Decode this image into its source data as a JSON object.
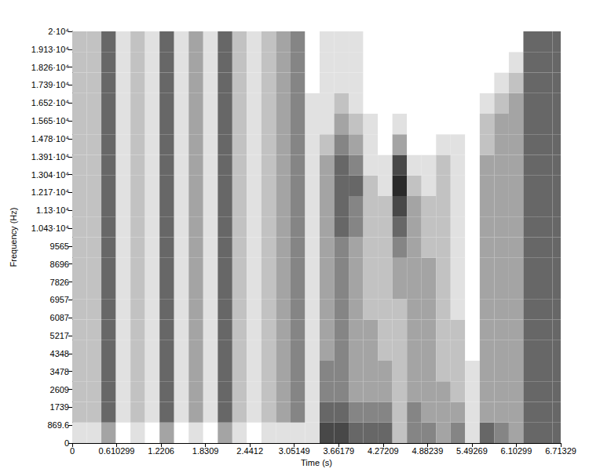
{
  "chart_data": {
    "type": "heatmap",
    "x_label": "Time (s)",
    "y_label": "Frequency (Hz)",
    "xlim": [
      0,
      6.71329
    ],
    "ylim": [
      0,
      20000
    ],
    "xticks": [
      0,
      0.610299,
      1.2206,
      1.8309,
      2.4412,
      3.05149,
      3.66179,
      4.27209,
      4.88239,
      5.49269,
      6.10299,
      6.71329
    ],
    "yticks": [
      0,
      869.6,
      1739,
      2609,
      3478,
      4348,
      5217,
      6087,
      6957,
      7826,
      8696,
      9565,
      {
        "value": 10435,
        "label": "1.043·10⁴"
      },
      {
        "value": 11304,
        "label": "1.13·10⁴"
      },
      {
        "value": 12174,
        "label": "1.217·10⁴"
      },
      {
        "value": 13043,
        "label": "1.304·10⁴"
      },
      {
        "value": 13913,
        "label": "1.391·10⁴"
      },
      {
        "value": 14783,
        "label": "1.478·10⁴"
      },
      {
        "value": 15652,
        "label": "1.565·10⁴"
      },
      {
        "value": 16522,
        "label": "1.652·10⁴"
      },
      {
        "value": 17391,
        "label": "1.739·10⁴"
      },
      {
        "value": 18261,
        "label": "1.826·10⁴"
      },
      {
        "value": 19130,
        "label": "1.913·10⁴"
      },
      {
        "value": 20000,
        "label": "2·10⁴"
      }
    ],
    "grid": false,
    "color": "#2a2a2a",
    "time_bins": [
      0,
      0.2,
      0.4,
      0.6,
      0.8,
      1.0,
      1.2,
      1.4,
      1.6,
      1.8,
      2.0,
      2.2,
      2.4,
      2.6,
      2.8,
      3.0,
      3.2,
      3.4,
      3.6,
      3.8,
      4.0,
      4.2,
      4.4,
      4.6,
      4.8,
      5.0,
      5.2,
      5.4,
      5.6,
      5.8,
      6.0,
      6.2,
      6.4,
      6.6,
      6.71329
    ],
    "frequency_bins": [
      0,
      1000,
      2000,
      3000,
      4000,
      5000,
      6000,
      7000,
      8000,
      9000,
      10000,
      11000,
      12000,
      13000,
      14000,
      15000,
      16000,
      17000,
      18000,
      19000,
      20000
    ],
    "cells": [
      [
        1,
        2,
        2,
        2,
        2,
        2,
        2,
        2,
        2,
        2,
        2,
        2,
        2,
        2,
        2,
        2,
        2,
        2,
        2,
        2
      ],
      [
        1,
        2,
        2,
        2,
        2,
        2,
        2,
        2,
        2,
        2,
        2,
        2,
        2,
        2,
        2,
        2,
        2,
        2,
        2,
        2
      ],
      [
        3,
        5,
        5,
        5,
        5,
        5,
        5,
        5,
        5,
        5,
        5,
        5,
        5,
        5,
        5,
        5,
        5,
        5,
        5,
        5
      ],
      [
        0,
        1,
        1,
        1,
        1,
        1,
        1,
        1,
        1,
        1,
        1,
        1,
        1,
        1,
        1,
        1,
        1,
        1,
        1,
        1
      ],
      [
        1,
        2,
        2,
        2,
        2,
        2,
        2,
        2,
        2,
        2,
        2,
        2,
        2,
        2,
        2,
        2,
        2,
        2,
        2,
        2
      ],
      [
        0,
        1,
        1,
        1,
        1,
        1,
        1,
        1,
        1,
        1,
        1,
        1,
        1,
        1,
        1,
        1,
        1,
        1,
        1,
        1
      ],
      [
        3,
        5,
        5,
        5,
        5,
        5,
        5,
        5,
        5,
        5,
        5,
        5,
        5,
        5,
        5,
        5,
        5,
        5,
        5,
        5
      ],
      [
        0,
        1,
        1,
        1,
        1,
        1,
        1,
        1,
        1,
        1,
        1,
        1,
        1,
        1,
        1,
        1,
        1,
        1,
        1,
        1
      ],
      [
        1,
        3,
        3,
        3,
        3,
        3,
        3,
        3,
        3,
        3,
        3,
        3,
        3,
        3,
        3,
        3,
        3,
        3,
        3,
        3
      ],
      [
        0,
        1,
        1,
        1,
        1,
        1,
        1,
        1,
        1,
        1,
        1,
        1,
        1,
        1,
        1,
        1,
        1,
        1,
        1,
        1
      ],
      [
        3,
        5,
        5,
        5,
        5,
        5,
        5,
        5,
        5,
        5,
        5,
        5,
        5,
        5,
        5,
        5,
        5,
        5,
        5,
        5
      ],
      [
        1,
        2,
        2,
        2,
        2,
        2,
        2,
        2,
        2,
        2,
        2,
        2,
        2,
        2,
        2,
        2,
        2,
        2,
        2,
        2
      ],
      [
        0,
        1,
        1,
        1,
        1,
        1,
        1,
        1,
        1,
        1,
        1,
        1,
        1,
        1,
        1,
        1,
        1,
        1,
        1,
        1
      ],
      [
        1,
        2,
        2,
        2,
        2,
        2,
        2,
        2,
        2,
        2,
        2,
        2,
        2,
        2,
        2,
        2,
        2,
        2,
        2,
        2
      ],
      [
        1,
        3,
        3,
        3,
        3,
        3,
        3,
        3,
        3,
        3,
        3,
        3,
        3,
        3,
        3,
        3,
        3,
        3,
        3,
        3
      ],
      [
        1,
        4,
        4,
        4,
        4,
        4,
        4,
        4,
        4,
        4,
        4,
        4,
        4,
        4,
        4,
        4,
        4,
        4,
        4,
        4
      ],
      [
        1,
        1,
        1,
        1,
        1,
        1,
        1,
        1,
        1,
        1,
        1,
        1,
        1,
        1,
        1,
        1,
        1,
        0,
        0,
        0
      ],
      [
        6,
        5,
        4,
        4,
        3,
        3,
        3,
        3,
        3,
        3,
        3,
        3,
        3,
        3,
        2,
        1,
        1,
        1,
        1,
        1
      ],
      [
        6,
        5,
        4,
        4,
        4,
        4,
        4,
        4,
        4,
        4,
        5,
        5,
        5,
        5,
        4,
        3,
        2,
        1,
        1,
        1
      ],
      [
        5,
        4,
        3,
        3,
        3,
        3,
        3,
        3,
        3,
        3,
        4,
        4,
        5,
        4,
        3,
        2,
        1,
        1,
        1,
        1
      ],
      [
        5,
        4,
        3,
        3,
        3,
        3,
        2,
        2,
        2,
        2,
        2,
        2,
        2,
        1,
        1,
        1,
        0,
        0,
        0,
        0
      ],
      [
        5,
        4,
        3,
        3,
        2,
        2,
        2,
        2,
        2,
        2,
        2,
        2,
        1,
        1,
        0,
        0,
        0,
        0,
        0,
        0
      ],
      [
        2,
        2,
        2,
        2,
        2,
        2,
        2,
        3,
        3,
        4,
        5,
        6,
        7,
        6,
        3,
        1,
        0,
        0,
        0,
        0
      ],
      [
        4,
        4,
        3,
        3,
        3,
        3,
        3,
        3,
        3,
        3,
        3,
        3,
        2,
        1,
        0,
        0,
        0,
        0,
        0,
        0
      ],
      [
        4,
        3,
        3,
        3,
        3,
        3,
        3,
        3,
        3,
        2,
        2,
        2,
        1,
        1,
        0,
        0,
        0,
        0,
        0,
        0
      ],
      [
        3,
        3,
        3,
        2,
        2,
        2,
        2,
        2,
        2,
        2,
        2,
        2,
        2,
        2,
        1,
        0,
        0,
        0,
        0,
        0
      ],
      [
        4,
        3,
        2,
        2,
        2,
        2,
        1,
        1,
        1,
        1,
        1,
        1,
        1,
        1,
        1,
        0,
        0,
        0,
        0,
        0
      ],
      [
        1,
        1,
        1,
        1,
        0,
        0,
        0,
        0,
        0,
        0,
        0,
        0,
        0,
        0,
        0,
        0,
        0,
        0,
        0,
        0
      ],
      [
        5,
        3,
        3,
        3,
        3,
        3,
        3,
        3,
        3,
        3,
        3,
        3,
        3,
        3,
        2,
        2,
        1,
        0,
        0,
        0
      ],
      [
        4,
        3,
        3,
        3,
        3,
        3,
        3,
        3,
        3,
        3,
        3,
        3,
        3,
        3,
        3,
        3,
        2,
        1,
        0,
        0
      ],
      [
        3,
        3,
        3,
        3,
        3,
        3,
        3,
        3,
        3,
        3,
        3,
        3,
        3,
        3,
        3,
        3,
        3,
        2,
        1,
        0
      ],
      [
        5,
        5,
        5,
        5,
        5,
        5,
        5,
        5,
        5,
        5,
        5,
        5,
        5,
        5,
        5,
        5,
        5,
        5,
        5,
        5
      ],
      [
        5,
        5,
        5,
        5,
        5,
        5,
        5,
        5,
        5,
        5,
        5,
        5,
        5,
        5,
        5,
        5,
        5,
        5,
        5,
        5
      ],
      [
        5,
        5,
        5,
        5,
        5,
        5,
        5,
        5,
        5,
        5,
        5,
        5,
        5,
        5,
        5,
        5,
        5,
        5,
        5,
        5
      ]
    ]
  }
}
